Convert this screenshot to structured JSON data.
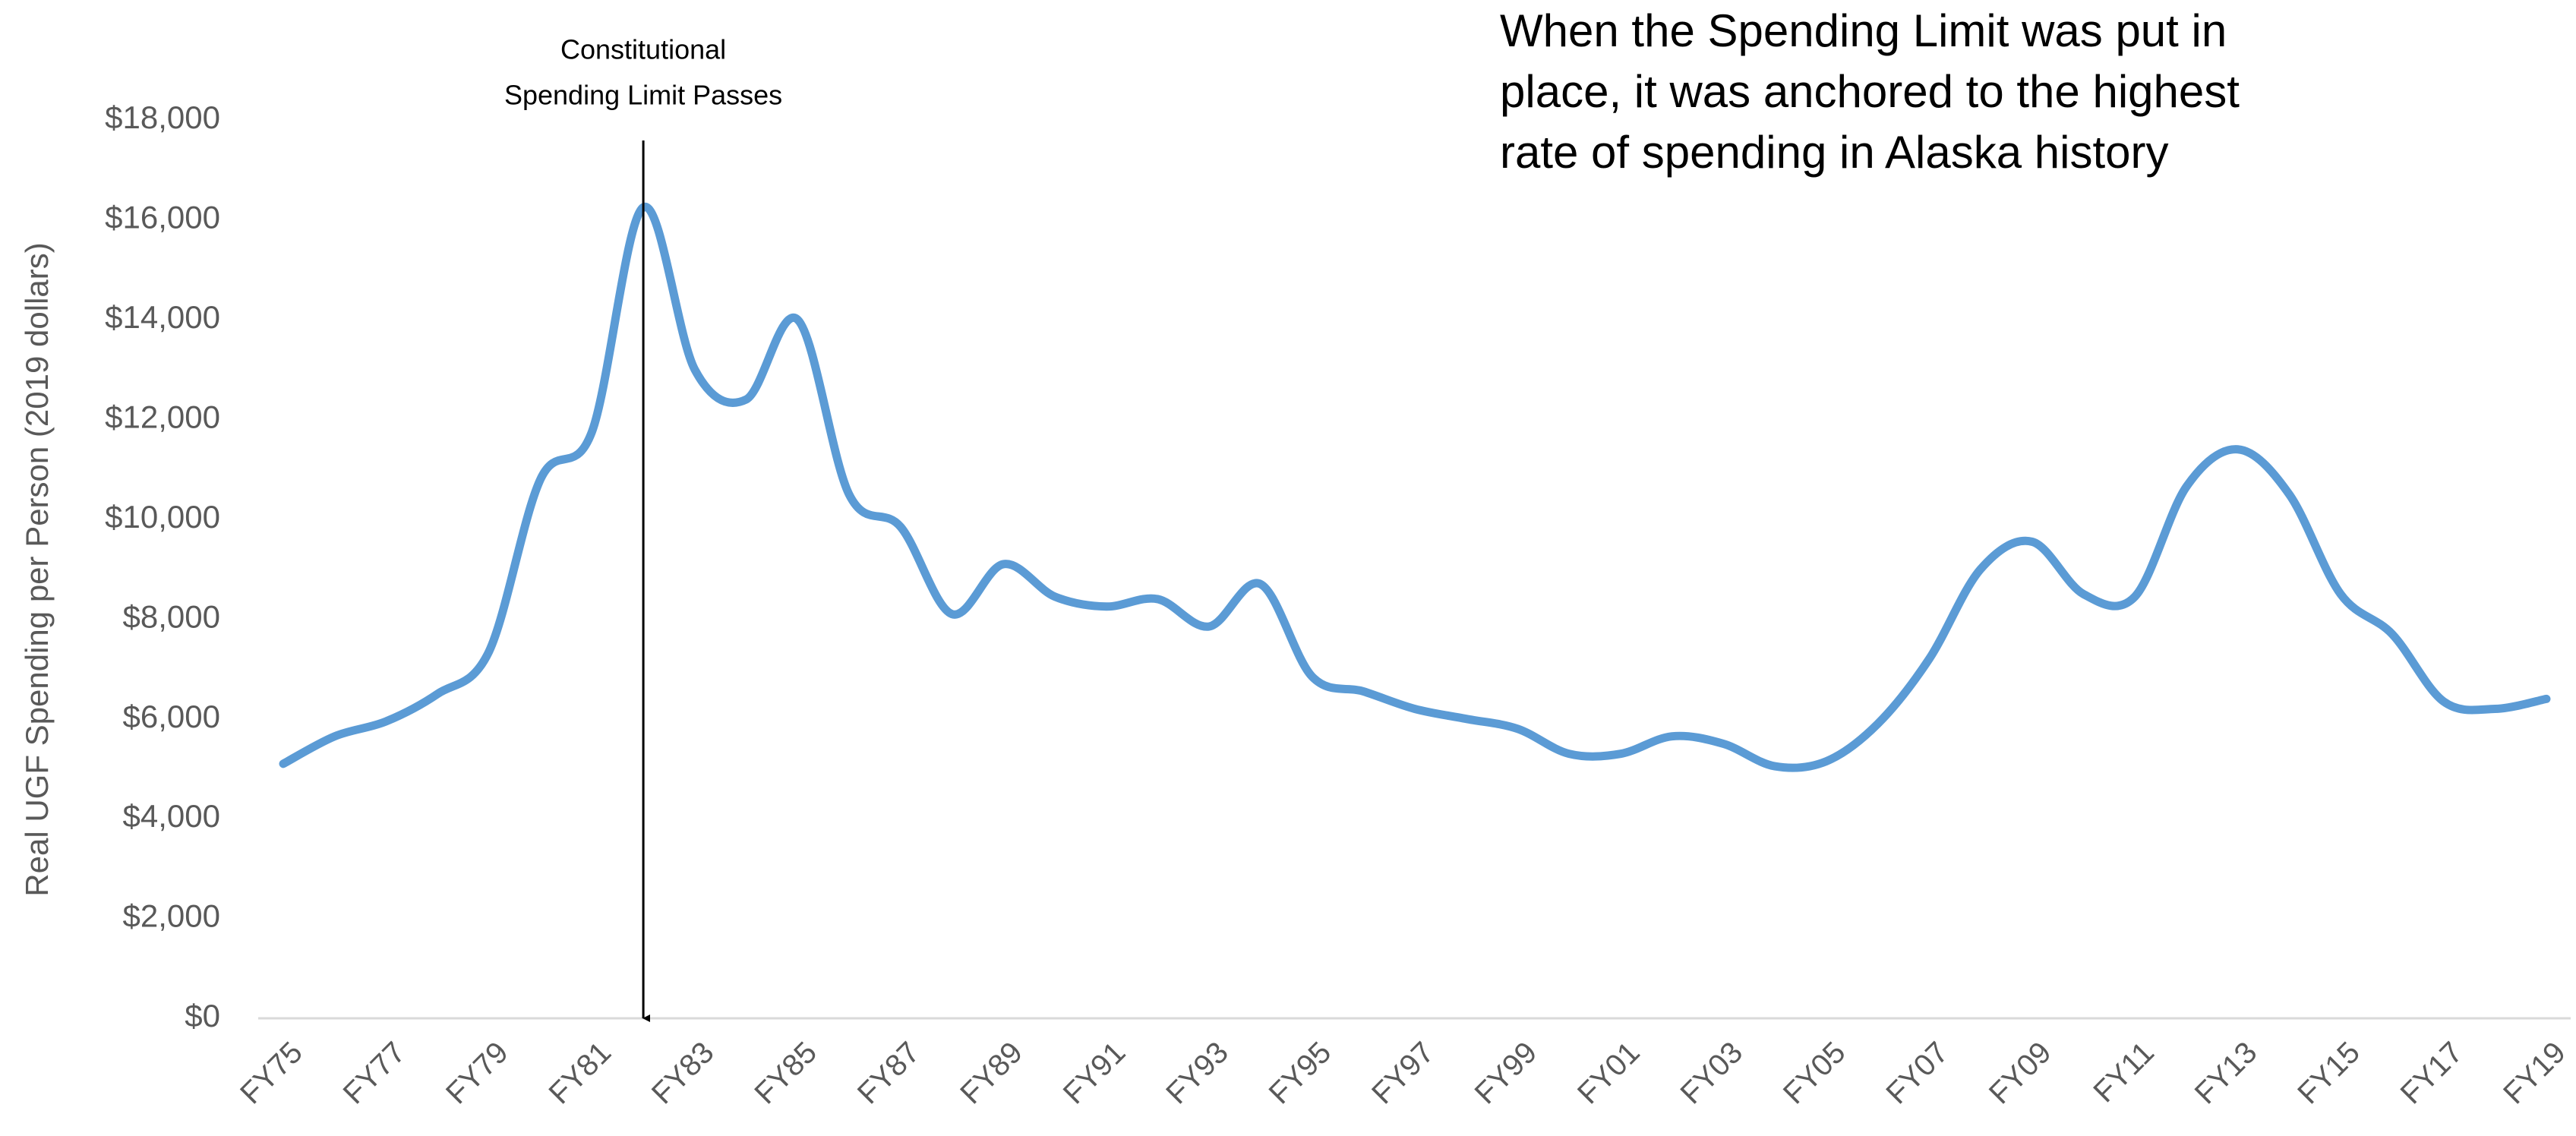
{
  "chart_data": {
    "type": "line",
    "y_label": "Real UGF Spending per Person (2019 dollars)",
    "annotation": [
      "Constitutional",
      "Spending Limit Passes"
    ],
    "note": [
      "When the Spending Limit was put in",
      "place, it was anchored to the highest",
      "rate of spending in Alaska history"
    ],
    "categories": [
      "FY75",
      null,
      "FY77",
      null,
      "FY79",
      null,
      "FY81",
      null,
      "FY83",
      null,
      "FY85",
      null,
      "FY87",
      null,
      "FY89",
      null,
      "FY91",
      null,
      "FY93",
      null,
      "FY95",
      null,
      "FY97",
      null,
      "FY99",
      null,
      "FY01",
      null,
      "FY03",
      null,
      "FY05",
      null,
      "FY07",
      null,
      "FY09",
      null,
      "FY11",
      null,
      "FY13",
      null,
      "FY15",
      null,
      "FY17",
      null,
      "FY19"
    ],
    "series": [
      {
        "name": "Real UGF Spending per Person",
        "color": "#5b9bd5",
        "values": [
          5100,
          5650,
          5950,
          6500,
          7350,
          10800,
          11750,
          16250,
          13000,
          12400,
          14000,
          10500,
          9850,
          8100,
          9100,
          8450,
          8250,
          8400,
          7850,
          8700,
          6850,
          6550,
          6200,
          6000,
          5800,
          5300,
          5300,
          5650,
          5500,
          5050,
          5150,
          5900,
          7200,
          9000,
          9550,
          8500,
          8450,
          10650,
          11400,
          10500,
          8500,
          7700,
          6350,
          6200,
          6400
        ]
      }
    ],
    "ylim": [
      0,
      18000
    ],
    "yticks": [
      {
        "value": 0,
        "label": "$0"
      },
      {
        "value": 2000,
        "label": "$2,000"
      },
      {
        "value": 4000,
        "label": "$4,000"
      },
      {
        "value": 6000,
        "label": "$6,000"
      },
      {
        "value": 8000,
        "label": "$8,000"
      },
      {
        "value": 10000,
        "label": "$10,000"
      },
      {
        "value": 12000,
        "label": "$12,000"
      },
      {
        "value": 14000,
        "label": "$14,000"
      },
      {
        "value": 16000,
        "label": "$16,000"
      },
      {
        "value": 18000,
        "label": "$18,000"
      }
    ],
    "grid": false
  }
}
